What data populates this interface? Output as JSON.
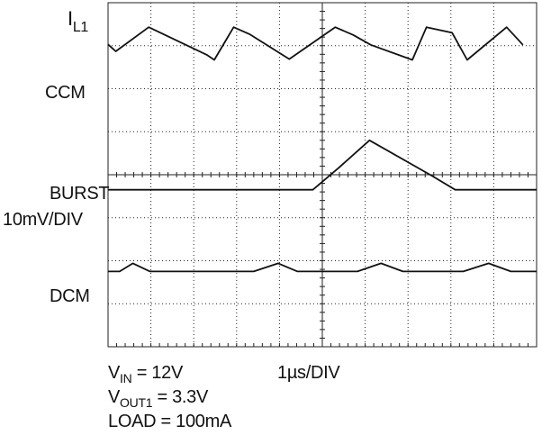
{
  "labels": {
    "il1_main": "I",
    "il1_sub": "L1",
    "ccm": "CCM",
    "burst": "BURST",
    "burst_scale": "10mV/DIV",
    "dcm": "DCM"
  },
  "notes": {
    "vin_main": "V",
    "vin_sub": "IN",
    "vin_value": " = 12V",
    "vout_main": "V",
    "vout_sub": "OUT1",
    "vout_value": " = 3.3V",
    "load": "LOAD = 100mA",
    "time_scale": "1µs/DIV"
  },
  "chart_data": {
    "type": "line",
    "grid": true,
    "x_divisions": 10,
    "y_divisions": 8,
    "xlim": [
      0,
      10
    ],
    "ylim": [
      0,
      8
    ],
    "colors": {
      "trace": "#111111",
      "grid": "#222222",
      "background": "#ffffff"
    },
    "series": [
      {
        "name": "CCM",
        "x": [
          0,
          0.18,
          0.95,
          2.3,
          2.48,
          2.93,
          3.3,
          4.23,
          5.3,
          5.72,
          6.13,
          7.1,
          7.43,
          8.03,
          8.38,
          9.3,
          9.68
        ],
        "y": [
          7.03,
          6.87,
          7.43,
          6.79,
          6.67,
          7.43,
          7.27,
          6.69,
          7.43,
          7.25,
          7.02,
          6.67,
          7.43,
          7.3,
          6.67,
          7.43,
          7.02
        ]
      },
      {
        "name": "BURST",
        "x": [
          0,
          4.78,
          5.38,
          6.1,
          7.55,
          8.1,
          10
        ],
        "y": [
          3.65,
          3.65,
          4.16,
          4.8,
          3.98,
          3.65,
          3.65
        ]
      },
      {
        "name": "DCM",
        "x": [
          0,
          0.27,
          0.58,
          0.98,
          1.48,
          3.4,
          3.97,
          4.42,
          5.82,
          6.37,
          6.88,
          8.29,
          8.88,
          9.4,
          10
        ],
        "y": [
          1.75,
          1.75,
          1.94,
          1.75,
          1.75,
          1.75,
          1.94,
          1.75,
          1.75,
          1.94,
          1.75,
          1.75,
          1.94,
          1.75,
          1.75
        ]
      }
    ]
  }
}
